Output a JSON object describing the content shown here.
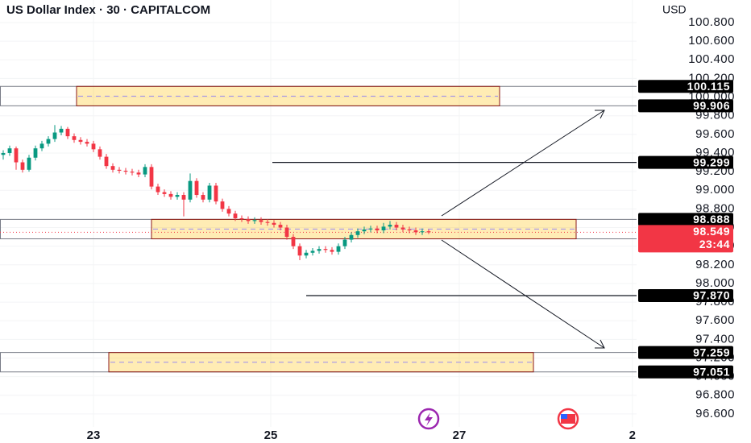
{
  "chart_data": {
    "type": "candlestick",
    "title": "US Dollar Index · 30 · CAPITALCOM",
    "currency": "USD",
    "up_color": "#089981",
    "down_color": "#f23645",
    "ylim": [
      96.461,
      101.042
    ],
    "yticks": [
      {
        "value": 100.8,
        "label": "100.800"
      },
      {
        "value": 100.6,
        "label": "100.600"
      },
      {
        "value": 100.4,
        "label": "100.400"
      },
      {
        "value": 100.2,
        "label": "100.200"
      },
      {
        "value": 100.0,
        "label": "100.000"
      },
      {
        "value": 99.8,
        "label": "99.800"
      },
      {
        "value": 99.6,
        "label": "99.600"
      },
      {
        "value": 99.4,
        "label": "99.400"
      },
      {
        "value": 99.2,
        "label": "99.200"
      },
      {
        "value": 99.0,
        "label": "99.000"
      },
      {
        "value": 98.8,
        "label": "98.800"
      },
      {
        "value": 98.6,
        "label": "98.600"
      },
      {
        "value": 98.4,
        "label": "98.400"
      },
      {
        "value": 98.2,
        "label": "98.200"
      },
      {
        "value": 98.0,
        "label": "98.000"
      },
      {
        "value": 97.8,
        "label": "97.800"
      },
      {
        "value": 97.6,
        "label": "97.600"
      },
      {
        "value": 97.4,
        "label": "97.400"
      },
      {
        "value": 97.2,
        "label": "97.200"
      },
      {
        "value": 97.0,
        "label": "97.000"
      },
      {
        "value": 96.8,
        "label": "96.800"
      },
      {
        "value": 96.6,
        "label": "96.600"
      }
    ],
    "xlim": [
      0,
      98.75
    ],
    "xticks": [
      {
        "value": 14.5,
        "label": "23"
      },
      {
        "value": 42,
        "label": "25"
      },
      {
        "value": 71.25,
        "label": "27"
      },
      {
        "value": 98.1,
        "label": "2"
      }
    ],
    "open": [
      99.38,
      99.4,
      99.45,
      99.3,
      99.22,
      99.35,
      99.45,
      99.5,
      99.55,
      99.62,
      99.66,
      99.58,
      99.54,
      99.52,
      99.5,
      99.44,
      99.36,
      99.26,
      99.22,
      99.21,
      99.2,
      99.19,
      99.17,
      99.25,
      99.04,
      98.98,
      98.96,
      98.93,
      98.95,
      98.9,
      99.1,
      98.95,
      98.9,
      99.05,
      98.88,
      98.8,
      98.75,
      98.7,
      98.69,
      98.67,
      98.68,
      98.66,
      98.65,
      98.63,
      98.6,
      98.5,
      98.4,
      98.3,
      98.33,
      98.35,
      98.37,
      98.36,
      98.34,
      98.4,
      98.47,
      98.52,
      98.56,
      98.58,
      98.59,
      98.57,
      98.61,
      98.63,
      98.6,
      98.58,
      98.57,
      98.55,
      98.56
    ],
    "high": [
      99.43,
      99.48,
      99.47,
      99.33,
      99.38,
      99.48,
      99.53,
      99.58,
      99.7,
      99.69,
      99.68,
      99.61,
      99.57,
      99.55,
      99.53,
      99.47,
      99.39,
      99.29,
      99.25,
      99.24,
      99.23,
      99.22,
      99.28,
      99.28,
      99.07,
      99.01,
      98.99,
      98.98,
      98.98,
      99.18,
      99.13,
      98.98,
      99.08,
      99.08,
      98.91,
      98.83,
      98.78,
      98.73,
      98.72,
      98.71,
      98.71,
      98.69,
      98.68,
      98.66,
      98.63,
      98.53,
      98.43,
      98.36,
      98.38,
      98.4,
      98.4,
      98.39,
      98.43,
      98.5,
      98.55,
      98.59,
      98.61,
      98.62,
      98.62,
      98.65,
      98.67,
      98.66,
      98.63,
      98.61,
      98.6,
      98.59,
      98.58
    ],
    "low": [
      99.33,
      99.37,
      99.22,
      99.19,
      99.2,
      99.32,
      99.42,
      99.47,
      99.52,
      99.59,
      99.55,
      99.51,
      99.49,
      99.47,
      99.41,
      99.33,
      99.23,
      99.19,
      99.18,
      99.17,
      99.16,
      99.14,
      99.14,
      99.01,
      98.95,
      98.93,
      98.9,
      98.9,
      98.72,
      98.87,
      98.92,
      98.87,
      98.87,
      98.85,
      98.77,
      98.72,
      98.67,
      98.66,
      98.64,
      98.64,
      98.63,
      98.62,
      98.6,
      98.57,
      98.47,
      98.37,
      98.25,
      98.27,
      98.3,
      98.32,
      98.33,
      98.31,
      98.31,
      98.37,
      98.44,
      98.49,
      98.53,
      98.55,
      98.54,
      98.54,
      98.58,
      98.57,
      98.55,
      98.54,
      98.52,
      98.52,
      98.53
    ],
    "close": [
      99.4,
      99.45,
      99.3,
      99.22,
      99.35,
      99.45,
      99.5,
      99.55,
      99.62,
      99.66,
      99.58,
      99.54,
      99.52,
      99.5,
      99.44,
      99.36,
      99.26,
      99.22,
      99.21,
      99.2,
      99.19,
      99.17,
      99.25,
      99.04,
      98.98,
      98.96,
      98.93,
      98.95,
      98.9,
      99.1,
      98.95,
      98.9,
      99.05,
      98.88,
      98.8,
      98.75,
      98.7,
      98.69,
      98.67,
      98.68,
      98.66,
      98.65,
      98.63,
      98.6,
      98.5,
      98.4,
      98.3,
      98.33,
      98.35,
      98.37,
      98.36,
      98.34,
      98.4,
      98.47,
      98.52,
      98.56,
      98.58,
      98.59,
      98.57,
      98.61,
      98.63,
      98.6,
      98.58,
      98.57,
      98.55,
      98.56,
      98.549
    ],
    "zones": [
      {
        "top": 100.115,
        "bottom": 99.906
      },
      {
        "top": 98.688,
        "bottom": 98.479
      },
      {
        "top": 97.259,
        "bottom": 97.051
      }
    ],
    "levels": [
      {
        "value": 99.299,
        "label": "99.299"
      },
      {
        "value": 97.87,
        "label": "97.870"
      }
    ],
    "last_price": 98.549,
    "countdown": "23:44"
  }
}
